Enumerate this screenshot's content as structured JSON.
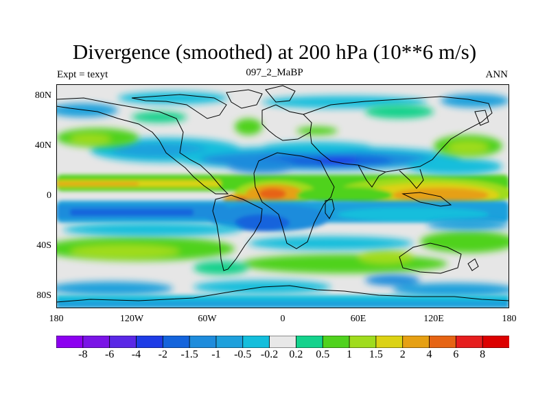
{
  "title": "Divergence (smoothed) at 200 hPa (10**6 m/s)",
  "subtitle_left": "Expt = texyt",
  "subtitle_center": "097_2_MaBP",
  "subtitle_right": "ANN",
  "lat_labels": [
    "80N",
    "40N",
    "0",
    "40S",
    "80S"
  ],
  "lon_labels": [
    "180",
    "120W",
    "60W",
    "0",
    "60E",
    "120E",
    "180"
  ],
  "colorbar": {
    "labels": [
      "-8",
      "-6",
      "-4",
      "-2",
      "-1.5",
      "-1",
      "-0.5",
      "-0.2",
      "0.2",
      "0.5",
      "1",
      "1.5",
      "2",
      "4",
      "6",
      "8"
    ],
    "colors": [
      "#8c00f0",
      "#7a14e6",
      "#5a28e6",
      "#1e3ce6",
      "#1464dc",
      "#1e8cdc",
      "#1ea0dc",
      "#14bedc",
      "#e8e8e8",
      "#14d28c",
      "#50d21e",
      "#a0dc1e",
      "#dcd214",
      "#e6a014",
      "#e66414",
      "#e61e1e",
      "#dc0000"
    ]
  },
  "colors": {
    "background": "#e6e6e6",
    "coast": "#000000"
  }
}
